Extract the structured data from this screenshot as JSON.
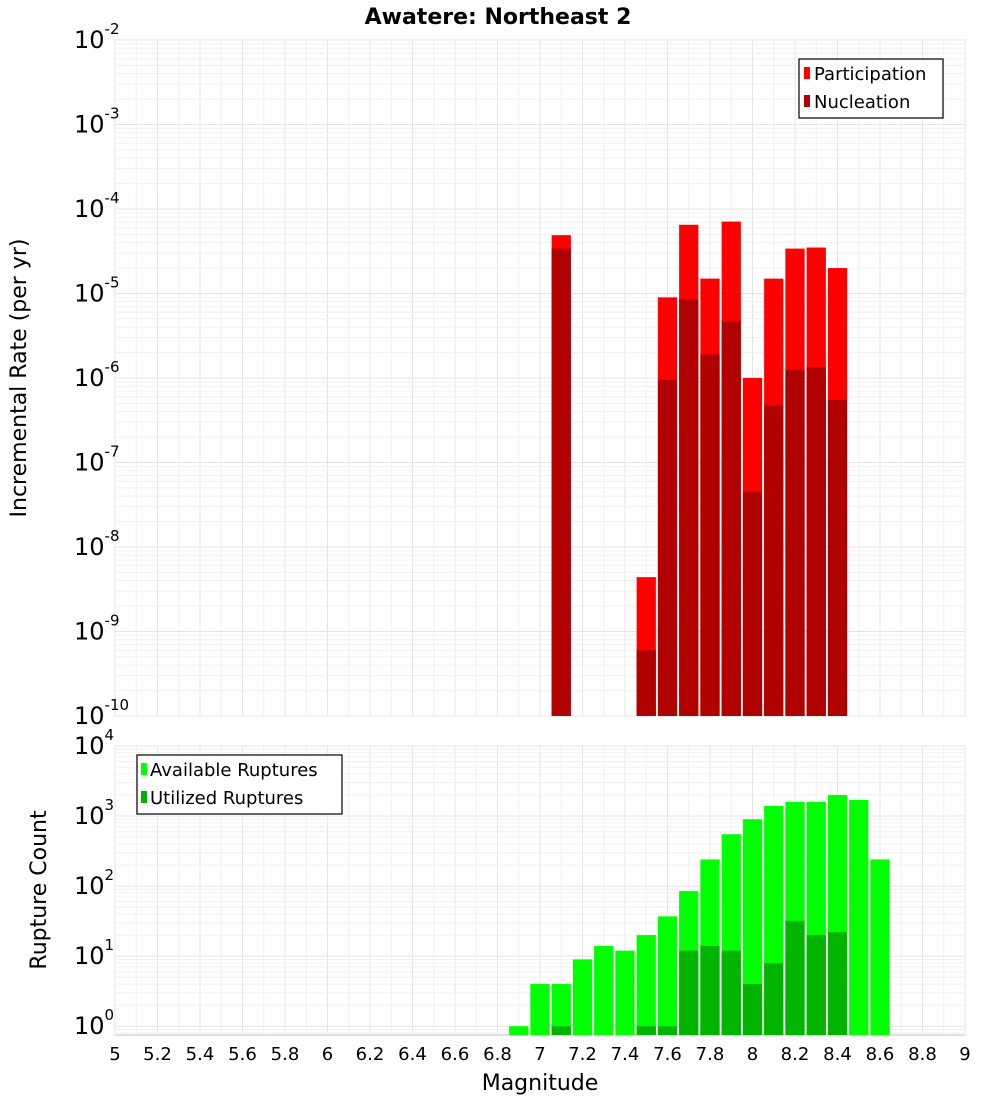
{
  "chart_data": [
    {
      "type": "bar",
      "title": "Awatere: Northeast 2",
      "xlabel": "",
      "ylabel": "Incremental Rate (per yr)",
      "yscale": "log",
      "xlim": [
        5,
        9
      ],
      "ylim": [
        1e-10,
        0.01
      ],
      "bin_width": 0.1,
      "y_tick_exponents": [
        -10,
        -9,
        -8,
        -7,
        -6,
        -5,
        -4,
        -3,
        -2
      ],
      "legend_position": "top-right",
      "grid": true,
      "series": [
        {
          "name": "Participation",
          "color": "#ff0000",
          "x": [
            7.1,
            7.5,
            7.6,
            7.7,
            7.8,
            7.9,
            8.0,
            8.1,
            8.2,
            8.3,
            8.4
          ],
          "values": [
            4.9e-05,
            4.4e-09,
            9e-06,
            6.5e-05,
            1.5e-05,
            7.1e-05,
            1e-06,
            1.5e-05,
            3.4e-05,
            3.5e-05,
            2e-05
          ]
        },
        {
          "name": "Nucleation",
          "color": "#b00000",
          "x": [
            7.1,
            7.5,
            7.6,
            7.7,
            7.8,
            7.9,
            8.0,
            8.1,
            8.2,
            8.3,
            8.4
          ],
          "values": [
            3.4e-05,
            6e-10,
            9.5e-07,
            8.5e-06,
            1.9e-06,
            4.7e-06,
            4.5e-08,
            4.8e-07,
            1.25e-06,
            1.35e-06,
            5.5e-07
          ]
        }
      ]
    },
    {
      "type": "bar",
      "title": "",
      "xlabel": "Magnitude",
      "ylabel": "Rupture Count",
      "yscale": "log",
      "xlim": [
        5,
        9
      ],
      "ylim": [
        0.75,
        10000
      ],
      "bin_width": 0.1,
      "x_ticks": [
        "5",
        "5.2",
        "5.4",
        "5.6",
        "5.8",
        "6",
        "6.2",
        "6.4",
        "6.6",
        "6.8",
        "7",
        "7.2",
        "7.4",
        "7.6",
        "7.8",
        "8",
        "8.2",
        "8.4",
        "8.6",
        "8.8",
        "9"
      ],
      "y_tick_exponents": [
        0,
        1,
        2,
        3,
        4
      ],
      "legend_position": "top-left",
      "grid": true,
      "series": [
        {
          "name": "Available Ruptures",
          "color": "#00ff00",
          "x": [
            6.9,
            7.0,
            7.1,
            7.2,
            7.3,
            7.4,
            7.5,
            7.6,
            7.7,
            7.8,
            7.9,
            8.0,
            8.1,
            8.2,
            8.3,
            8.4,
            8.5,
            8.6
          ],
          "values": [
            1,
            4,
            4,
            9,
            14,
            12,
            20,
            37,
            85,
            240,
            550,
            900,
            1400,
            1600,
            1600,
            2000,
            1700,
            240
          ]
        },
        {
          "name": "Utilized Ruptures",
          "color": "#00b400",
          "x": [
            7.1,
            7.5,
            7.6,
            7.7,
            7.8,
            7.9,
            8.0,
            8.1,
            8.2,
            8.3,
            8.4
          ],
          "values": [
            1,
            1,
            1,
            12,
            14,
            12,
            4,
            8,
            32,
            20,
            22
          ]
        }
      ]
    }
  ]
}
